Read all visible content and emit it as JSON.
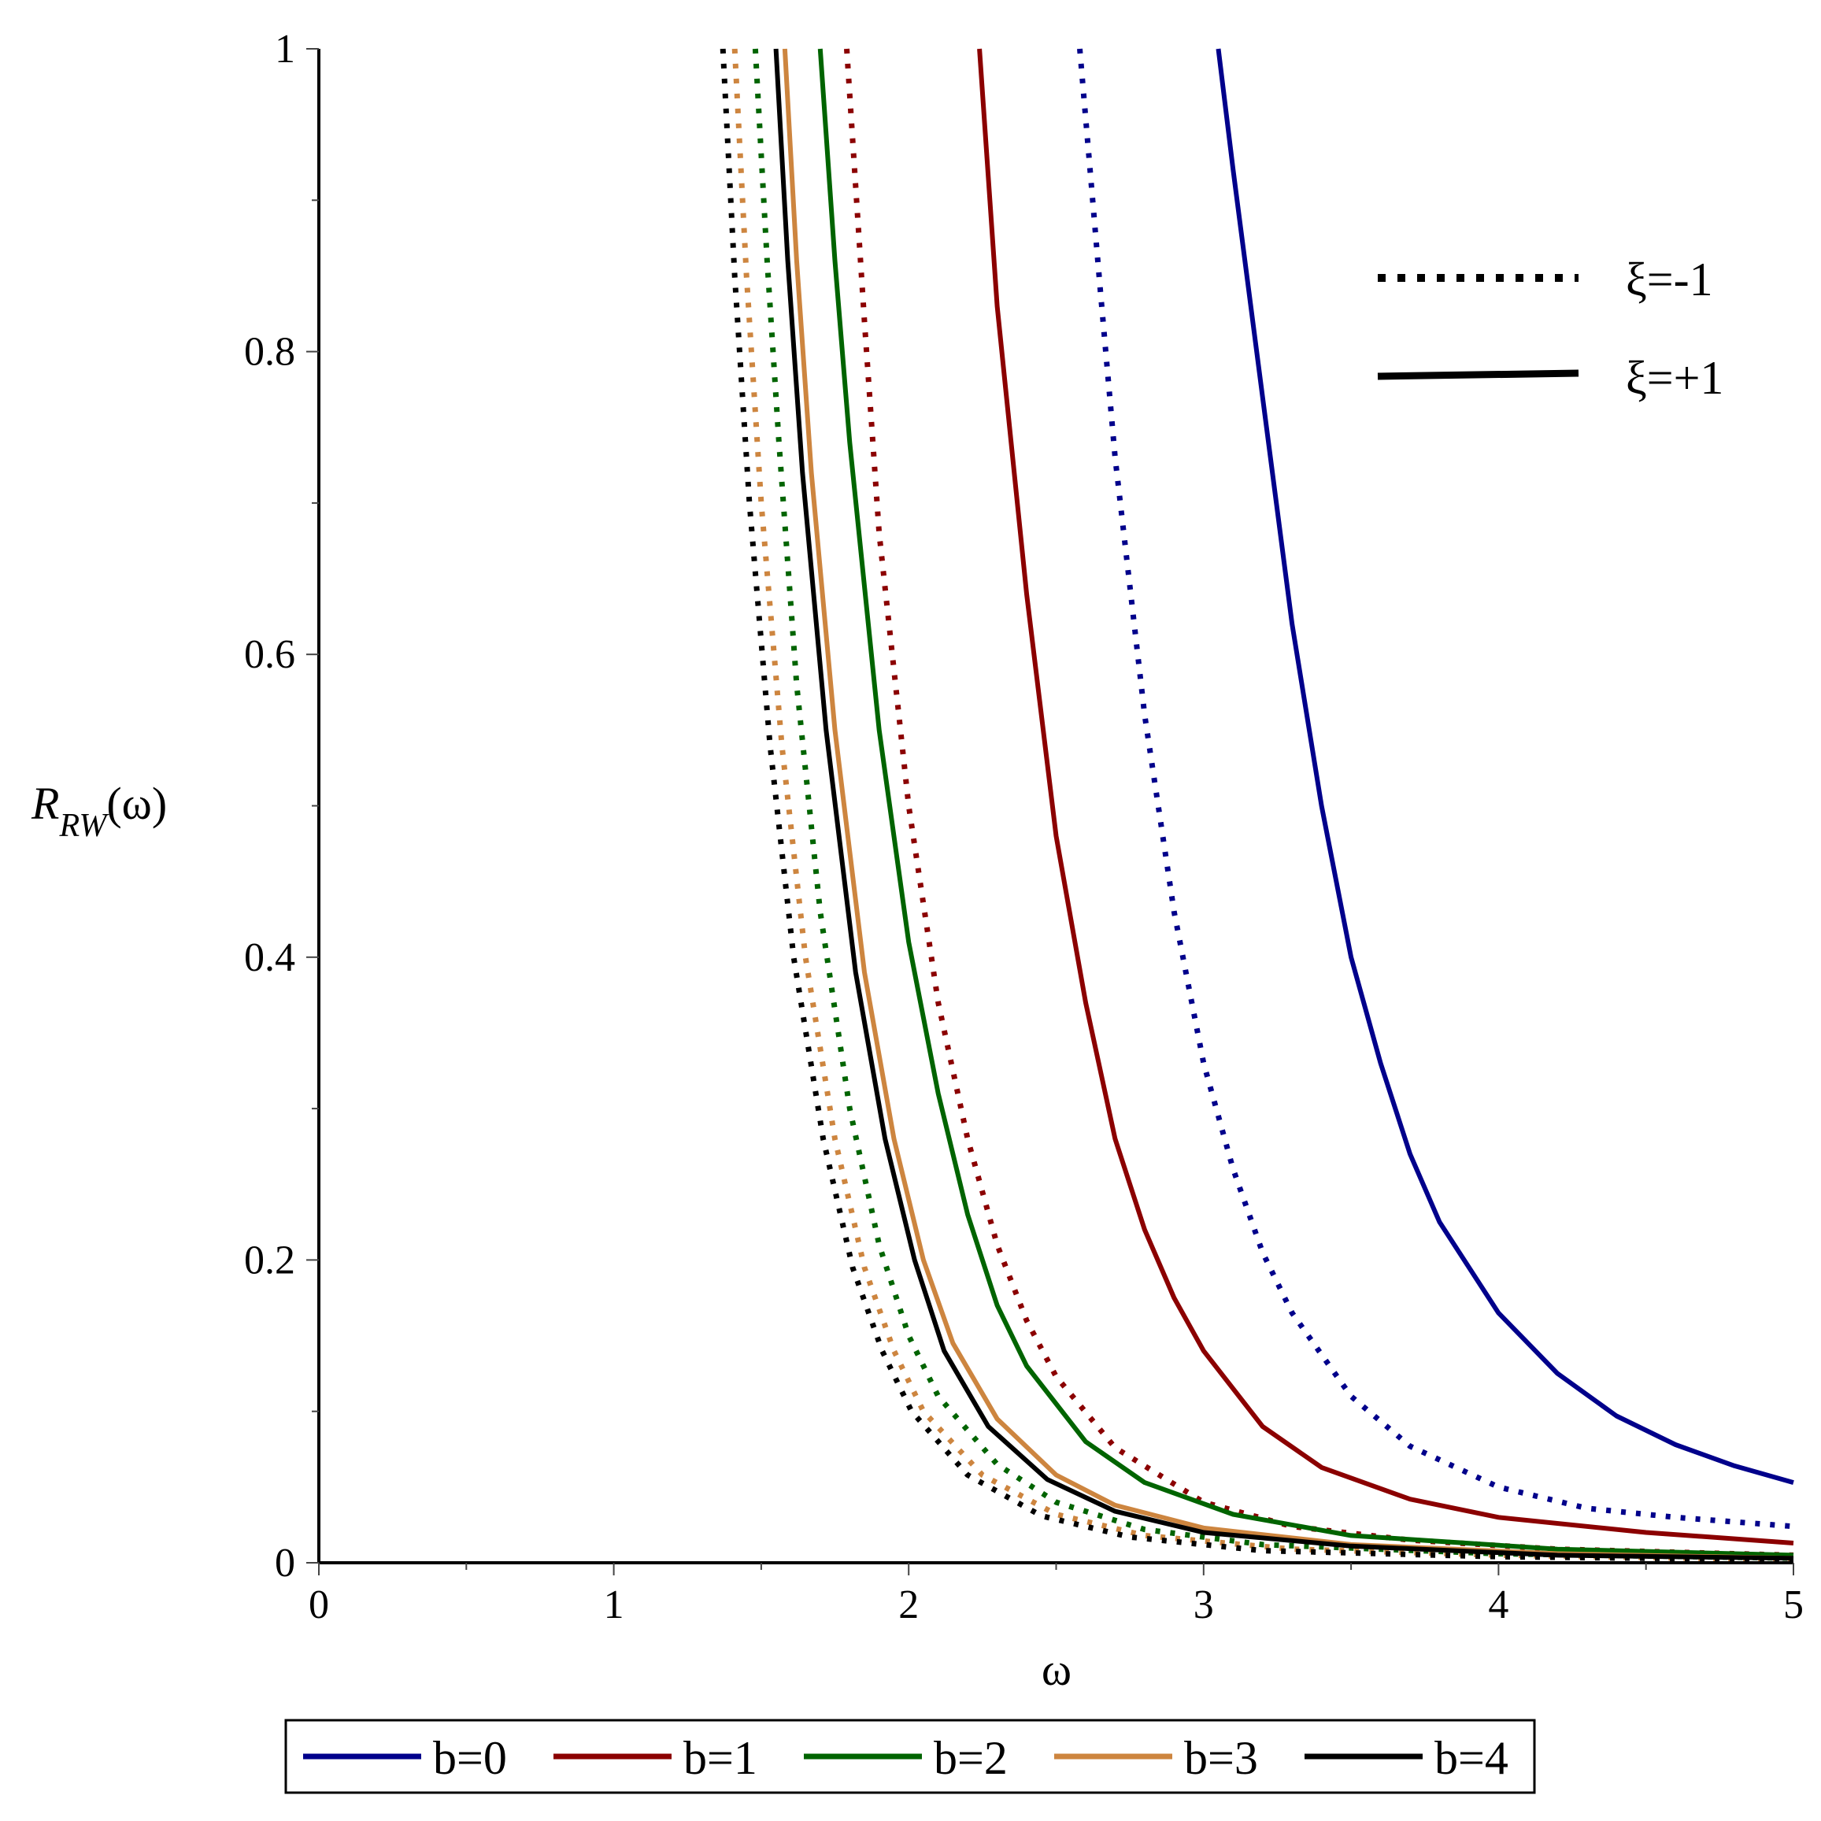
{
  "chart_data": {
    "type": "line",
    "xlabel": "ω",
    "ylabel_main": "R",
    "ylabel_sub": "RW",
    "ylabel_arg": "(ω)",
    "xlim": [
      0,
      5
    ],
    "ylim": [
      0,
      1
    ],
    "x_ticks": [
      0,
      1,
      2,
      3,
      4,
      5
    ],
    "x_tick_labels": [
      "0",
      "1",
      "2",
      "3",
      "4",
      "5"
    ],
    "y_ticks": [
      0,
      0.2,
      0.4,
      0.6,
      0.8,
      1
    ],
    "y_tick_labels": [
      "0",
      "0.2",
      "0.4",
      "0.6",
      "0.8",
      "1"
    ],
    "grid": false,
    "style_legend": [
      {
        "label": "ξ=-1",
        "style": "dotted"
      },
      {
        "label": "ξ=+1",
        "style": "solid"
      }
    ],
    "color_legend": [
      {
        "label": "b=0",
        "color": "#00008B"
      },
      {
        "label": "b=1",
        "color": "#8B0000"
      },
      {
        "label": "b=2",
        "color": "#006400"
      },
      {
        "label": "b=3",
        "color": "#CD853F"
      },
      {
        "label": "b=4",
        "color": "#000000"
      }
    ],
    "series": [
      {
        "b": 0,
        "xi": 1,
        "color": "#00008B",
        "style": "solid",
        "points": [
          [
            3.05,
            1.0
          ],
          [
            3.1,
            0.92
          ],
          [
            3.2,
            0.77
          ],
          [
            3.3,
            0.62
          ],
          [
            3.4,
            0.5
          ],
          [
            3.5,
            0.4
          ],
          [
            3.6,
            0.33
          ],
          [
            3.7,
            0.27
          ],
          [
            3.8,
            0.225
          ],
          [
            4.0,
            0.165
          ],
          [
            4.2,
            0.125
          ],
          [
            4.4,
            0.097
          ],
          [
            4.6,
            0.078
          ],
          [
            4.8,
            0.064
          ],
          [
            5.0,
            0.053
          ]
        ]
      },
      {
        "b": 0,
        "xi": -1,
        "color": "#00008B",
        "style": "dotted",
        "points": [
          [
            2.58,
            1.0
          ],
          [
            2.65,
            0.84
          ],
          [
            2.7,
            0.73
          ],
          [
            2.8,
            0.56
          ],
          [
            2.9,
            0.43
          ],
          [
            3.0,
            0.33
          ],
          [
            3.1,
            0.26
          ],
          [
            3.2,
            0.205
          ],
          [
            3.3,
            0.165
          ],
          [
            3.5,
            0.11
          ],
          [
            3.7,
            0.077
          ],
          [
            4.0,
            0.05
          ],
          [
            4.3,
            0.036
          ],
          [
            4.6,
            0.03
          ],
          [
            5.0,
            0.024
          ]
        ]
      },
      {
        "b": 1,
        "xi": 1,
        "color": "#8B0000",
        "style": "solid",
        "points": [
          [
            2.24,
            1.0
          ],
          [
            2.3,
            0.83
          ],
          [
            2.4,
            0.64
          ],
          [
            2.5,
            0.48
          ],
          [
            2.6,
            0.37
          ],
          [
            2.7,
            0.28
          ],
          [
            2.8,
            0.22
          ],
          [
            2.9,
            0.175
          ],
          [
            3.0,
            0.14
          ],
          [
            3.2,
            0.09
          ],
          [
            3.4,
            0.063
          ],
          [
            3.7,
            0.042
          ],
          [
            4.0,
            0.03
          ],
          [
            4.5,
            0.02
          ],
          [
            5.0,
            0.013
          ]
        ]
      },
      {
        "b": 1,
        "xi": -1,
        "color": "#8B0000",
        "style": "dotted",
        "points": [
          [
            1.79,
            1.0
          ],
          [
            1.85,
            0.82
          ],
          [
            1.9,
            0.68
          ],
          [
            2.0,
            0.5
          ],
          [
            2.1,
            0.37
          ],
          [
            2.2,
            0.28
          ],
          [
            2.3,
            0.21
          ],
          [
            2.4,
            0.16
          ],
          [
            2.5,
            0.123
          ],
          [
            2.7,
            0.076
          ],
          [
            3.0,
            0.04
          ],
          [
            3.3,
            0.024
          ],
          [
            3.7,
            0.015
          ],
          [
            4.2,
            0.009
          ],
          [
            5.0,
            0.005
          ]
        ]
      },
      {
        "b": 2,
        "xi": 1,
        "color": "#006400",
        "style": "solid",
        "points": [
          [
            1.7,
            1.0
          ],
          [
            1.75,
            0.86
          ],
          [
            1.8,
            0.74
          ],
          [
            1.9,
            0.55
          ],
          [
            2.0,
            0.41
          ],
          [
            2.1,
            0.31
          ],
          [
            2.2,
            0.23
          ],
          [
            2.3,
            0.17
          ],
          [
            2.4,
            0.13
          ],
          [
            2.6,
            0.08
          ],
          [
            2.8,
            0.053
          ],
          [
            3.1,
            0.032
          ],
          [
            3.5,
            0.018
          ],
          [
            4.2,
            0.009
          ],
          [
            5.0,
            0.005
          ]
        ]
      },
      {
        "b": 2,
        "xi": -1,
        "color": "#006400",
        "style": "dotted",
        "points": [
          [
            1.48,
            1.0
          ],
          [
            1.52,
            0.86
          ],
          [
            1.56,
            0.74
          ],
          [
            1.62,
            0.58
          ],
          [
            1.7,
            0.43
          ],
          [
            1.8,
            0.3
          ],
          [
            1.9,
            0.21
          ],
          [
            2.0,
            0.15
          ],
          [
            2.1,
            0.11
          ],
          [
            2.3,
            0.065
          ],
          [
            2.5,
            0.04
          ],
          [
            2.8,
            0.022
          ],
          [
            3.2,
            0.012
          ],
          [
            4.0,
            0.006
          ],
          [
            5.0,
            0.003
          ]
        ]
      },
      {
        "b": 3,
        "xi": 1,
        "color": "#CD853F",
        "style": "solid",
        "points": [
          [
            1.58,
            1.0
          ],
          [
            1.62,
            0.86
          ],
          [
            1.67,
            0.72
          ],
          [
            1.75,
            0.55
          ],
          [
            1.85,
            0.39
          ],
          [
            1.95,
            0.28
          ],
          [
            2.05,
            0.2
          ],
          [
            2.15,
            0.145
          ],
          [
            2.3,
            0.095
          ],
          [
            2.5,
            0.058
          ],
          [
            2.7,
            0.038
          ],
          [
            3.0,
            0.023
          ],
          [
            3.5,
            0.012
          ],
          [
            4.2,
            0.006
          ],
          [
            5.0,
            0.003
          ]
        ]
      },
      {
        "b": 3,
        "xi": -1,
        "color": "#CD853F",
        "style": "dotted",
        "points": [
          [
            1.41,
            1.0
          ],
          [
            1.45,
            0.85
          ],
          [
            1.5,
            0.7
          ],
          [
            1.57,
            0.54
          ],
          [
            1.65,
            0.4
          ],
          [
            1.75,
            0.28
          ],
          [
            1.85,
            0.195
          ],
          [
            1.95,
            0.14
          ],
          [
            2.05,
            0.1
          ],
          [
            2.25,
            0.058
          ],
          [
            2.5,
            0.032
          ],
          [
            2.8,
            0.018
          ],
          [
            3.3,
            0.009
          ],
          [
            4.0,
            0.005
          ],
          [
            5.0,
            0.002
          ]
        ]
      },
      {
        "b": 4,
        "xi": 1,
        "color": "#000000",
        "style": "solid",
        "points": [
          [
            1.55,
            1.0
          ],
          [
            1.59,
            0.86
          ],
          [
            1.64,
            0.72
          ],
          [
            1.72,
            0.55
          ],
          [
            1.82,
            0.39
          ],
          [
            1.92,
            0.28
          ],
          [
            2.02,
            0.2
          ],
          [
            2.12,
            0.14
          ],
          [
            2.27,
            0.09
          ],
          [
            2.47,
            0.055
          ],
          [
            2.7,
            0.034
          ],
          [
            3.0,
            0.02
          ],
          [
            3.5,
            0.011
          ],
          [
            4.2,
            0.005
          ],
          [
            5.0,
            0.003
          ]
        ]
      },
      {
        "b": 4,
        "xi": -1,
        "color": "#000000",
        "style": "dotted",
        "points": [
          [
            1.37,
            1.0
          ],
          [
            1.41,
            0.85
          ],
          [
            1.46,
            0.7
          ],
          [
            1.53,
            0.54
          ],
          [
            1.61,
            0.4
          ],
          [
            1.71,
            0.28
          ],
          [
            1.81,
            0.195
          ],
          [
            1.91,
            0.14
          ],
          [
            2.01,
            0.1
          ],
          [
            2.2,
            0.058
          ],
          [
            2.45,
            0.031
          ],
          [
            2.75,
            0.017
          ],
          [
            3.2,
            0.008
          ],
          [
            4.0,
            0.004
          ],
          [
            5.0,
            0.002
          ]
        ]
      }
    ]
  }
}
